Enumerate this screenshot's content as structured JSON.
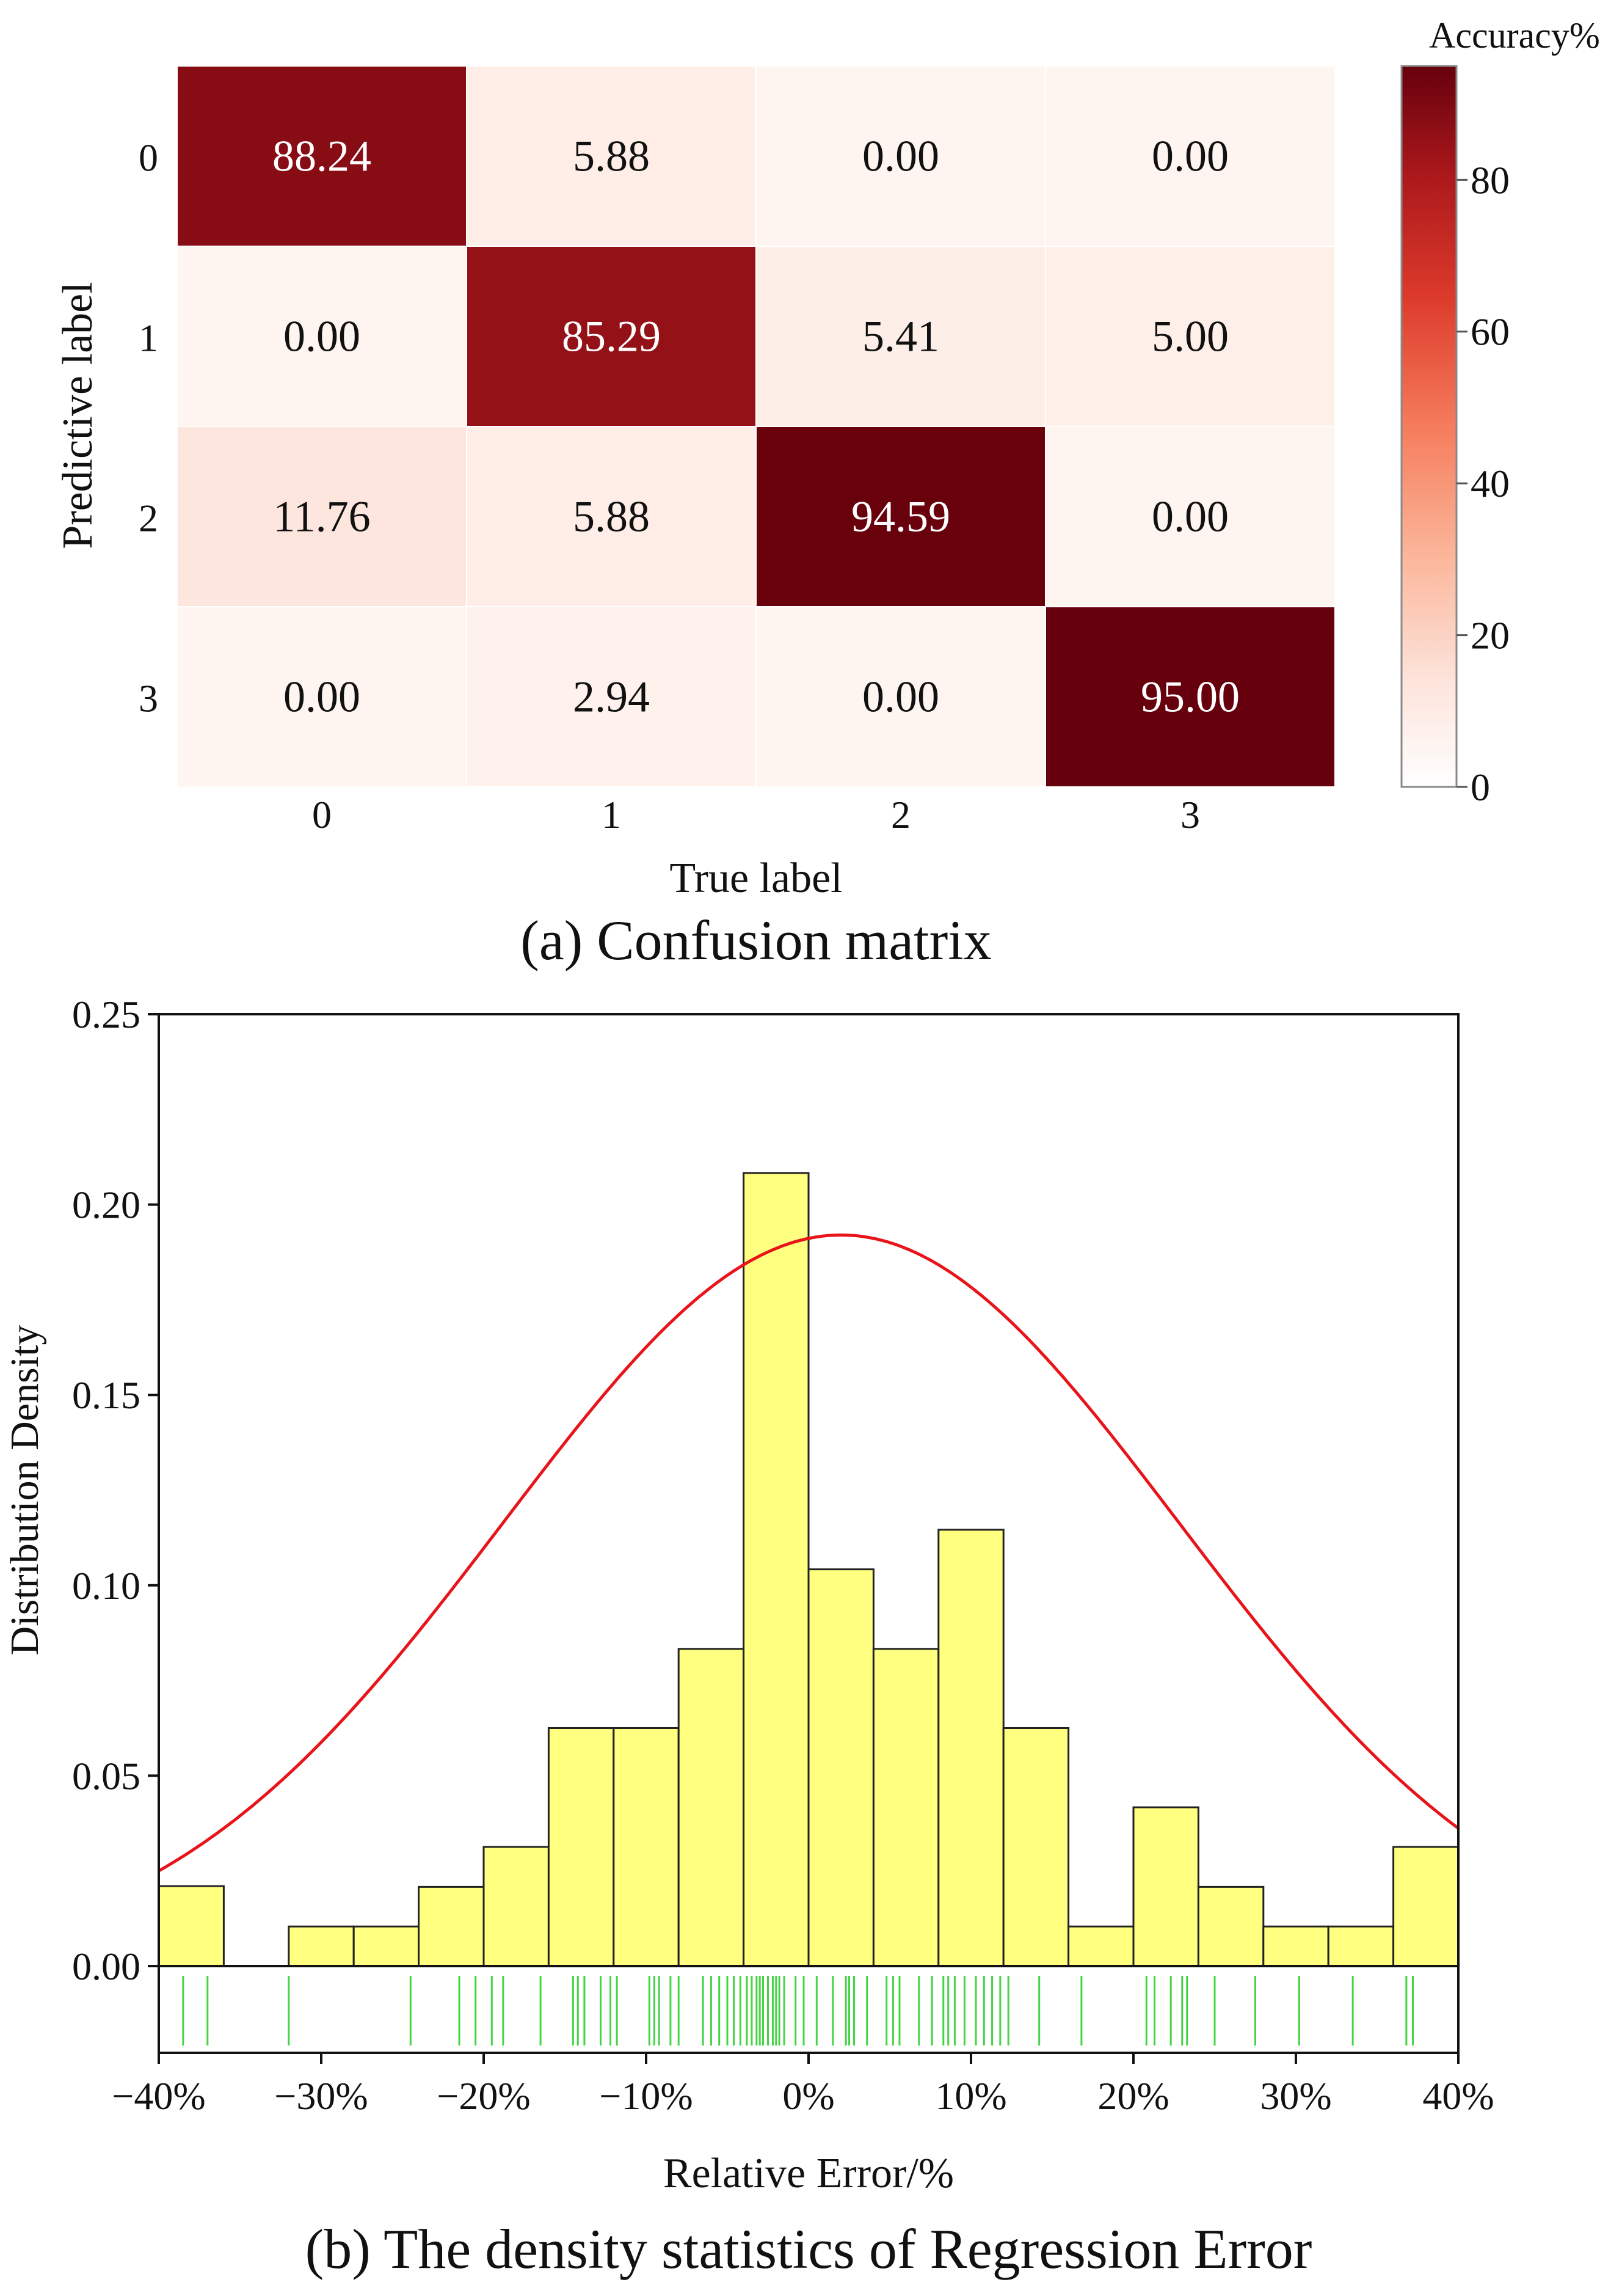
{
  "chart_data": [
    {
      "type": "heatmap",
      "caption": "(a) Confusion matrix",
      "xlabel": "True label",
      "ylabel": "Predictive label",
      "x_categories": [
        "0",
        "1",
        "2",
        "3"
      ],
      "y_categories": [
        "0",
        "1",
        "2",
        "3"
      ],
      "values": [
        [
          "88.24",
          "5.88",
          "0.00",
          "0.00"
        ],
        [
          "0.00",
          "85.29",
          "5.41",
          "5.00"
        ],
        [
          "11.76",
          "5.88",
          "94.59",
          "0.00"
        ],
        [
          "0.00",
          "2.94",
          "0.00",
          "95.00"
        ]
      ],
      "colorbar": {
        "title": "Accuracy%",
        "range": [
          0,
          95
        ],
        "ticks": [
          "0",
          "20",
          "40",
          "60",
          "80"
        ],
        "color_low": "#fff5f0",
        "color_high": "#67000d"
      }
    },
    {
      "type": "bar",
      "caption": "(b) The density statistics of Regression Error",
      "xlabel": "Relative Error/%",
      "ylabel": "Distribution Density",
      "xlim": [
        -40,
        40
      ],
      "ylim": [
        0,
        0.25
      ],
      "x_ticks": [
        "−40%",
        "−30%",
        "−20%",
        "−10%",
        "0%",
        "10%",
        "20%",
        "30%",
        "40%"
      ],
      "y_ticks": [
        "0.00",
        "0.05",
        "0.10",
        "0.15",
        "0.20",
        "0.25"
      ],
      "bins": {
        "start": -40,
        "width": 4,
        "densities": [
          0.021,
          0.0,
          0.0104,
          0.0104,
          0.0208,
          0.0313,
          0.0625,
          0.0625,
          0.0833,
          0.2083,
          0.1042,
          0.0833,
          0.1146,
          0.0625,
          0.0104,
          0.0417,
          0.0208,
          0.0104,
          0.0104,
          0.0313
        ]
      },
      "normal_curve": {
        "mean": 2.0,
        "sd": 20.8,
        "peak": 0.192
      },
      "rug": [
        -38.5,
        -37,
        -32,
        -24.5,
        -21.5,
        -20.5,
        -19.5,
        -18.8,
        -16.5,
        -14.5,
        -14.2,
        -13.8,
        -12.8,
        -12.2,
        -11.8,
        -9.8,
        -9.5,
        -9.2,
        -8.5,
        -8,
        -6.5,
        -6,
        -5.5,
        -5,
        -4.6,
        -4.2,
        -3.8,
        -3.5,
        -3.2,
        -3,
        -2.8,
        -2.5,
        -2.2,
        -2,
        -1.8,
        -1.5,
        -0.8,
        -0.3,
        0.5,
        1.5,
        2.3,
        2.5,
        2.8,
        3.6,
        4.8,
        5.2,
        5.6,
        6.8,
        7.6,
        8.3,
        8.6,
        9,
        9.6,
        10.3,
        10.8,
        11.3,
        11.8,
        12.3,
        14.2,
        16.8,
        20.8,
        21.3,
        22.3,
        23,
        23.3,
        25,
        27.5,
        30.2,
        33.5,
        36.8,
        37.2
      ],
      "colors": {
        "bar_fill": "#ffff80",
        "bar_stroke": "#222222",
        "curve": "#e8141a",
        "rug": "#44d444"
      }
    }
  ]
}
